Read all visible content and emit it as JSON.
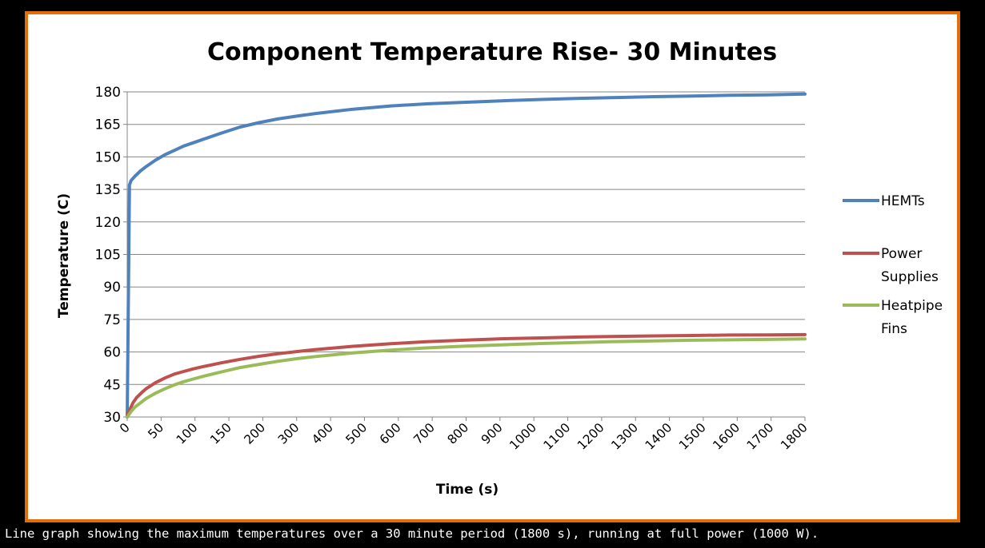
{
  "caption": "Line graph showing the maximum temperatures over a 30 minute period (1800 s), running at full power (1000 W).",
  "colors": {
    "frame": "#E46C0A",
    "background": "#000000",
    "plot_bg": "#FFFFFF",
    "grid": "#868686"
  },
  "chart_data": {
    "type": "line",
    "title": "Component Temperature Rise- 30 Minutes",
    "xlabel": "Time (s)",
    "ylabel": "Temperature (C)",
    "xlim": [
      0,
      1800
    ],
    "ylim": [
      30,
      180
    ],
    "x_ticks": [
      0,
      50,
      100,
      150,
      200,
      300,
      400,
      500,
      600,
      700,
      800,
      900,
      1000,
      1100,
      1200,
      1300,
      1400,
      1500,
      1600,
      1700,
      1800
    ],
    "y_ticks": [
      30,
      45,
      60,
      75,
      90,
      105,
      120,
      135,
      150,
      165,
      180
    ],
    "grid": "horizontal",
    "legend_position": "right",
    "series": [
      {
        "name": "HEMTs",
        "color": "#4F81BD",
        "points": [
          [
            0,
            30
          ],
          [
            6,
            137
          ],
          [
            10,
            139
          ],
          [
            20,
            141
          ],
          [
            35,
            143.5
          ],
          [
            50,
            145.5
          ],
          [
            75,
            148.5
          ],
          [
            100,
            151
          ],
          [
            125,
            153
          ],
          [
            150,
            155
          ],
          [
            175,
            156.5
          ],
          [
            200,
            158
          ],
          [
            250,
            161
          ],
          [
            300,
            163.8
          ],
          [
            350,
            165.8
          ],
          [
            400,
            167.5
          ],
          [
            450,
            168.8
          ],
          [
            500,
            170
          ],
          [
            600,
            172
          ],
          [
            700,
            173.5
          ],
          [
            800,
            174.5
          ],
          [
            900,
            175.2
          ],
          [
            1000,
            175.9
          ],
          [
            1100,
            176.5
          ],
          [
            1200,
            177
          ],
          [
            1300,
            177.4
          ],
          [
            1400,
            177.8
          ],
          [
            1500,
            178.1
          ],
          [
            1600,
            178.4
          ],
          [
            1700,
            178.6
          ],
          [
            1800,
            179
          ]
        ]
      },
      {
        "name": "Power Supplies",
        "color": "#C0504D",
        "points": [
          [
            0,
            31
          ],
          [
            6,
            33
          ],
          [
            15,
            36.5
          ],
          [
            25,
            39
          ],
          [
            40,
            41.5
          ],
          [
            50,
            43
          ],
          [
            75,
            45.8
          ],
          [
            100,
            48
          ],
          [
            125,
            49.8
          ],
          [
            150,
            51
          ],
          [
            175,
            52.2
          ],
          [
            200,
            53.2
          ],
          [
            250,
            55
          ],
          [
            300,
            56.6
          ],
          [
            350,
            58
          ],
          [
            400,
            59.2
          ],
          [
            450,
            60.2
          ],
          [
            500,
            61.1
          ],
          [
            600,
            62.6
          ],
          [
            700,
            63.8
          ],
          [
            800,
            64.8
          ],
          [
            900,
            65.5
          ],
          [
            1000,
            66.1
          ],
          [
            1100,
            66.5
          ],
          [
            1200,
            66.9
          ],
          [
            1300,
            67.2
          ],
          [
            1400,
            67.4
          ],
          [
            1500,
            67.6
          ],
          [
            1600,
            67.8
          ],
          [
            1700,
            67.9
          ],
          [
            1800,
            68
          ]
        ]
      },
      {
        "name": "Heatpipe Fins",
        "color": "#9BBB59",
        "points": [
          [
            0,
            30
          ],
          [
            10,
            32.5
          ],
          [
            20,
            34.5
          ],
          [
            35,
            36.5
          ],
          [
            50,
            38.5
          ],
          [
            75,
            41
          ],
          [
            100,
            43
          ],
          [
            125,
            44.8
          ],
          [
            150,
            46.3
          ],
          [
            175,
            47.5
          ],
          [
            200,
            48.7
          ],
          [
            250,
            50.8
          ],
          [
            300,
            52.8
          ],
          [
            350,
            54.3
          ],
          [
            400,
            55.7
          ],
          [
            450,
            56.9
          ],
          [
            500,
            57.9
          ],
          [
            600,
            59.6
          ],
          [
            700,
            60.9
          ],
          [
            800,
            61.9
          ],
          [
            900,
            62.7
          ],
          [
            1000,
            63.3
          ],
          [
            1100,
            63.9
          ],
          [
            1200,
            64.4
          ],
          [
            1300,
            64.8
          ],
          [
            1400,
            65.1
          ],
          [
            1500,
            65.4
          ],
          [
            1600,
            65.6
          ],
          [
            1700,
            65.8
          ],
          [
            1800,
            66
          ]
        ]
      }
    ]
  }
}
